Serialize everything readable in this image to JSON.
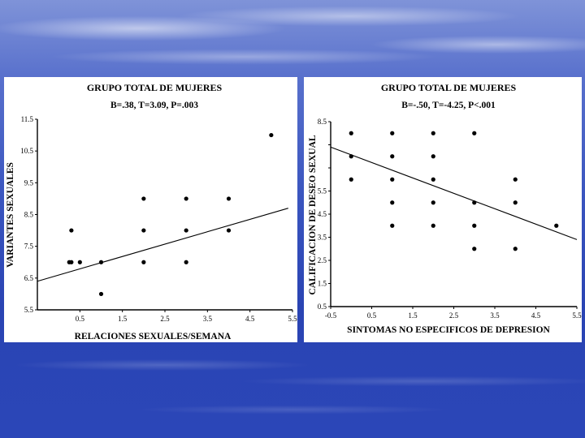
{
  "chart_data": [
    {
      "type": "scatter",
      "title": "GRUPO TOTAL DE MUJERES",
      "subtitle": "B=.38, T=3.09, P=.003",
      "xlabel": "RELACIONES SEXUALES/SEMANA",
      "ylabel": "VARIANTES SEXUALES",
      "xlim": [
        -0.5,
        5.5
      ],
      "ylim": [
        5.5,
        11.5
      ],
      "x_ticks": [
        "0.5",
        "1.5",
        "2.5",
        "3.5",
        "4.5",
        "5.5"
      ],
      "x_tick_values": [
        0.5,
        1.5,
        2.5,
        3.5,
        4.5,
        5.5
      ],
      "y_ticks": [
        "5.5",
        "6.5",
        "7.5",
        "8.5",
        "9.5",
        "10.5",
        "11.5"
      ],
      "y_tick_values": [
        5.5,
        6.5,
        7.5,
        8.5,
        9.5,
        10.5,
        11.5
      ],
      "points": [
        [
          0.25,
          7
        ],
        [
          0.3,
          8
        ],
        [
          0.3,
          7
        ],
        [
          0.5,
          7
        ],
        [
          1,
          7
        ],
        [
          1,
          6
        ],
        [
          2,
          9
        ],
        [
          2,
          8
        ],
        [
          2,
          7
        ],
        [
          3,
          9
        ],
        [
          3,
          8
        ],
        [
          3,
          7
        ],
        [
          4,
          9
        ],
        [
          4,
          8
        ],
        [
          5,
          11
        ]
      ],
      "regression_line": [
        [
          -0.5,
          6.4
        ],
        [
          5.4,
          8.7
        ]
      ],
      "grid": false
    },
    {
      "type": "scatter",
      "title": "GRUPO TOTAL DE MUJERES",
      "subtitle": "B=-.50, T=-4.25, P<.001",
      "xlabel": "SINTOMAS NO ESPECIFICOS DE DEPRESION",
      "ylabel": "CALIFICACION DE DESEO SEXUAL",
      "xlim": [
        -0.5,
        5.5
      ],
      "ylim": [
        0.5,
        8.5
      ],
      "x_ticks": [
        "-0.5",
        "0.5",
        "1.5",
        "2.5",
        "3.5",
        "4.5",
        "5.5"
      ],
      "x_tick_values": [
        -0.5,
        0.5,
        1.5,
        2.5,
        3.5,
        4.5,
        5.5
      ],
      "y_ticks": [
        "0.5",
        "1.5",
        "2.5",
        "3.5",
        "4.5",
        "5.5",
        "6.5",
        "7.5",
        "8.5"
      ],
      "y_tick_values": [
        0.5,
        1.5,
        2.5,
        3.5,
        4.5,
        5.5,
        6.5,
        7.5,
        8.5
      ],
      "y_tick_labels_visible": [
        "0.5",
        "1.5",
        "2.5",
        "3.5",
        "4.5",
        "5.5",
        "",
        "",
        "8.5"
      ],
      "points": [
        [
          0,
          8
        ],
        [
          0,
          7
        ],
        [
          0,
          6
        ],
        [
          1,
          8
        ],
        [
          1,
          7
        ],
        [
          1,
          6
        ],
        [
          1,
          5
        ],
        [
          1,
          4
        ],
        [
          2,
          8
        ],
        [
          2,
          7
        ],
        [
          2,
          6
        ],
        [
          2,
          5
        ],
        [
          2,
          4
        ],
        [
          3,
          8
        ],
        [
          3,
          5
        ],
        [
          3,
          4
        ],
        [
          3,
          3
        ],
        [
          4,
          6
        ],
        [
          4,
          5
        ],
        [
          4,
          3
        ],
        [
          5,
          4
        ]
      ],
      "regression_line": [
        [
          -0.5,
          7.4
        ],
        [
          5.5,
          3.4
        ]
      ],
      "grid": false
    }
  ]
}
